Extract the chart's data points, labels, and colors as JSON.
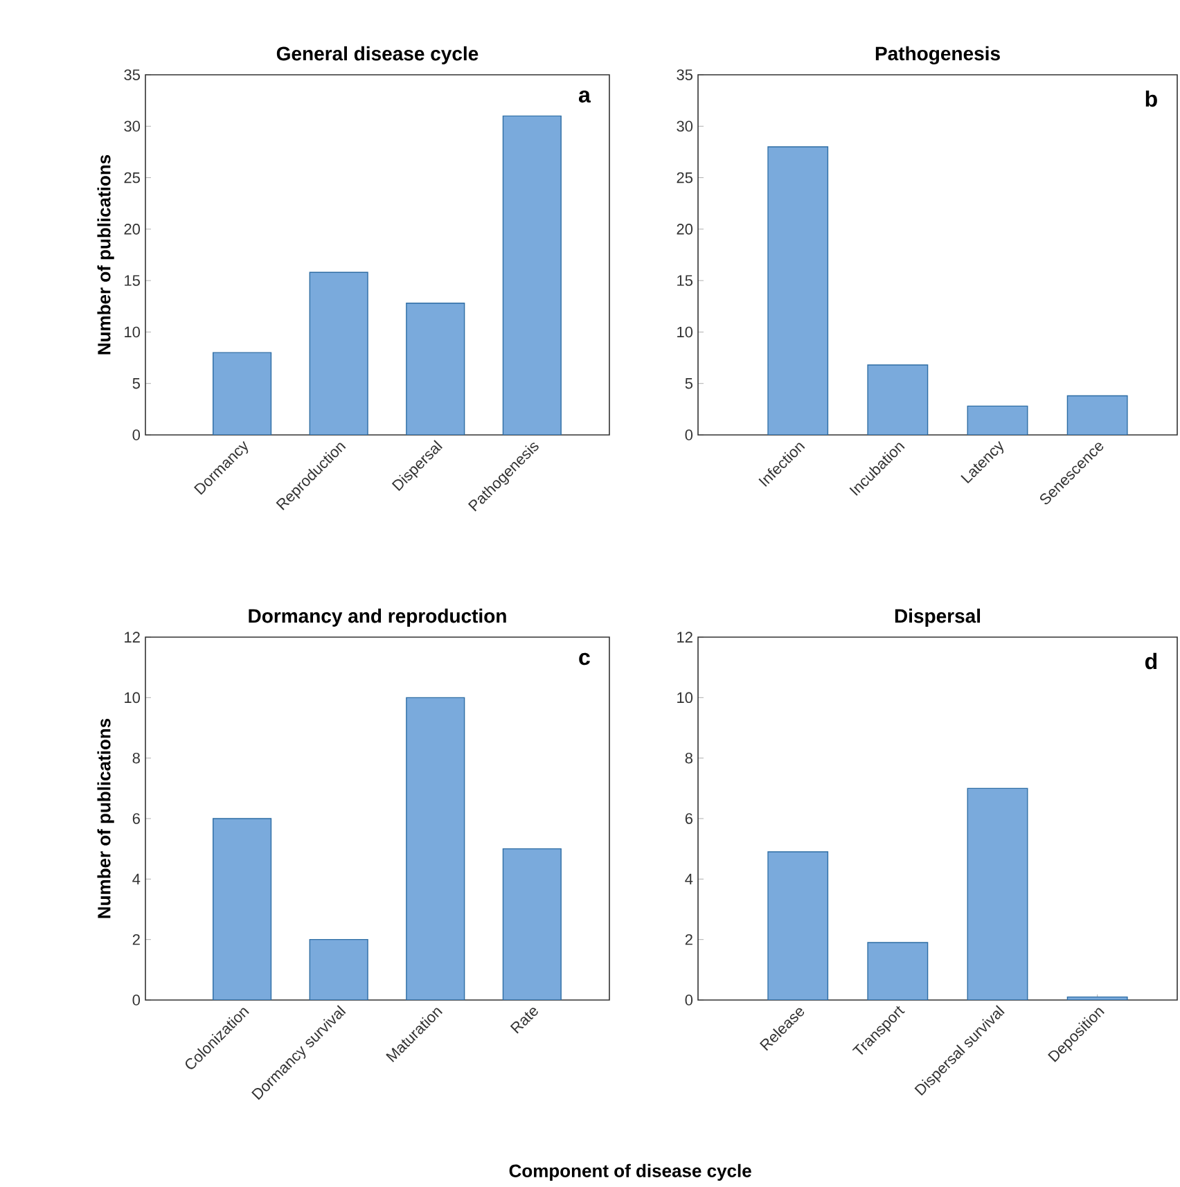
{
  "chart_data": [
    {
      "type": "bar",
      "title": "General disease cycle",
      "ylabel": "Number of publications",
      "categories": [
        "Dormancy",
        "Reproduction",
        "Dispersal",
        "Pathogenesis"
      ],
      "values": [
        8,
        15.8,
        12.8,
        31
      ],
      "color": "#7aaadc",
      "ylim": [
        0,
        35
      ],
      "yticks": [
        0,
        5,
        10,
        15,
        20,
        25,
        30,
        35
      ],
      "annotations": [
        "a"
      ]
    },
    {
      "type": "bar",
      "title": "Pathogenesis",
      "categories": [
        "Infection",
        "Incubation",
        "Latency",
        "Senescence"
      ],
      "values": [
        28,
        6.8,
        2.8,
        3.8
      ],
      "color": "#7aaadc",
      "ylim": [
        0,
        35
      ],
      "yticks": [
        0,
        5,
        10,
        15,
        20,
        25,
        30,
        35
      ],
      "annotations": [
        "b"
      ]
    },
    {
      "type": "bar",
      "title": "Dormancy and reproduction",
      "ylabel": "Number of publications",
      "xlabel": "Component of disease cycle",
      "categories": [
        "Colonization",
        "Dormancy survival",
        "Maturation",
        "Rate"
      ],
      "values": [
        6,
        2,
        10,
        5
      ],
      "color": "#7aaadc",
      "ylim": [
        0,
        12
      ],
      "yticks": [
        0,
        2,
        4,
        6,
        8,
        10,
        12
      ],
      "annotations": [
        "c"
      ]
    },
    {
      "type": "bar",
      "title": "Dispersal",
      "categories": [
        "Release",
        "Transport",
        "Dispersal survival",
        "Deposition"
      ],
      "values": [
        4.9,
        1.9,
        7,
        0.1
      ],
      "color": "#7aaadc",
      "ylim": [
        0,
        12
      ],
      "yticks": [
        0,
        2,
        4,
        6,
        8,
        10,
        12
      ],
      "annotations": [
        "d"
      ]
    }
  ]
}
